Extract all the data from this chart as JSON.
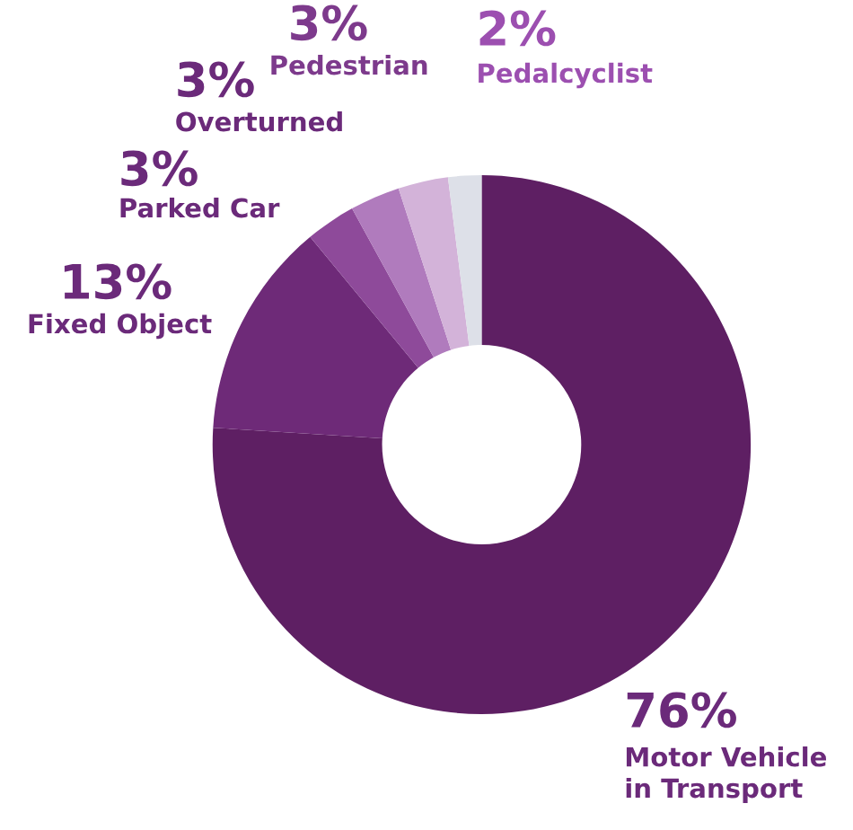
{
  "chart_data": {
    "type": "donut",
    "categories": [
      "Motor Vehicle\nin Transport",
      "Fixed Object",
      "Parked Car",
      "Overturned",
      "Pedestrian",
      "Pedalcyclist"
    ],
    "values": [
      76,
      13,
      3,
      3,
      3,
      2
    ],
    "value_labels": [
      "76%",
      "13%",
      "3%",
      "3%",
      "3%",
      "2%"
    ],
    "colors": [
      "#5e1f63",
      "#6e2a78",
      "#8e4a9a",
      "#b07bbd",
      "#d3b3d9",
      "#dde0e8"
    ],
    "legend": false
  }
}
